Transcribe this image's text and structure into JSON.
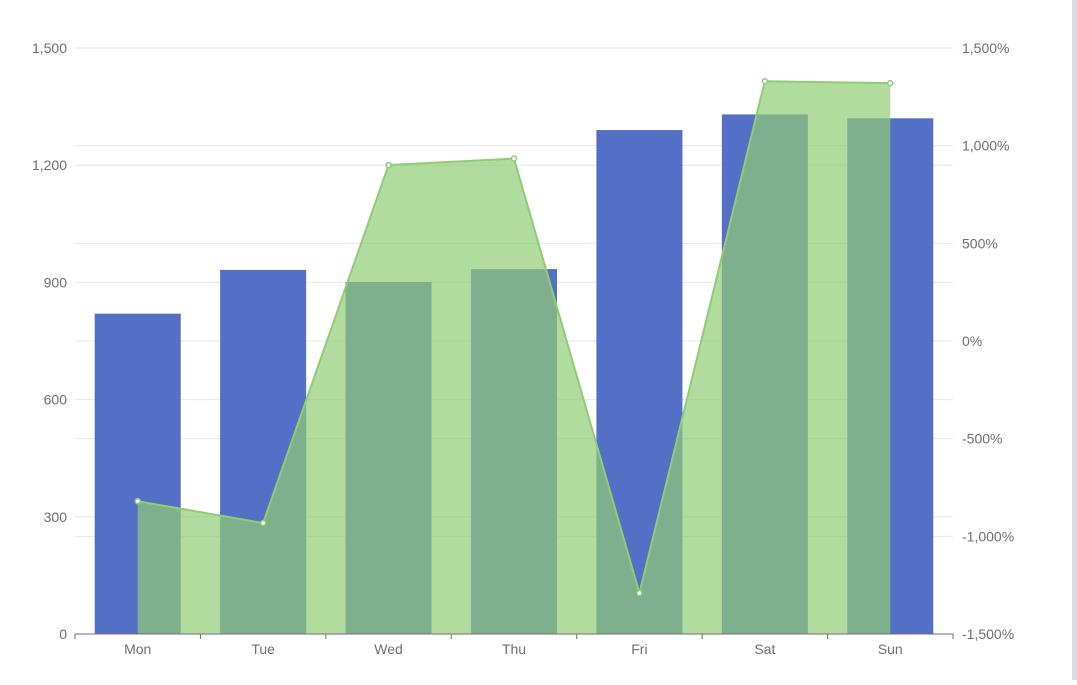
{
  "chart_data": {
    "type": "bar",
    "categories": [
      "Mon",
      "Tue",
      "Wed",
      "Thu",
      "Fri",
      "Sat",
      "Sun"
    ],
    "series": [
      {
        "type": "bar",
        "axis": "left",
        "values": [
          820,
          932,
          901,
          934,
          1290,
          1330,
          1320
        ],
        "color": "#5470c6"
      },
      {
        "type": "area",
        "axis": "right",
        "values": [
          -820,
          -932,
          901,
          934,
          -1290,
          1330,
          1320
        ],
        "color": "#91cc75"
      }
    ],
    "y_left": {
      "min": 0,
      "max": 1500,
      "ticks": [
        "0",
        "300",
        "600",
        "900",
        "1,200",
        "1,500"
      ]
    },
    "y_right": {
      "min": -1500,
      "max": 1500,
      "unit": "%",
      "ticks": [
        "-1,500%",
        "-1,000%",
        "-500%",
        "0%",
        "500%",
        "1,000%",
        "1,500%"
      ]
    },
    "grid": true,
    "colors": {
      "bar": "#5470c6",
      "line": "#91cc75",
      "axis_text": "#6e7079",
      "axis_line": "#6e7079",
      "grid": "#e0e6f1"
    }
  }
}
